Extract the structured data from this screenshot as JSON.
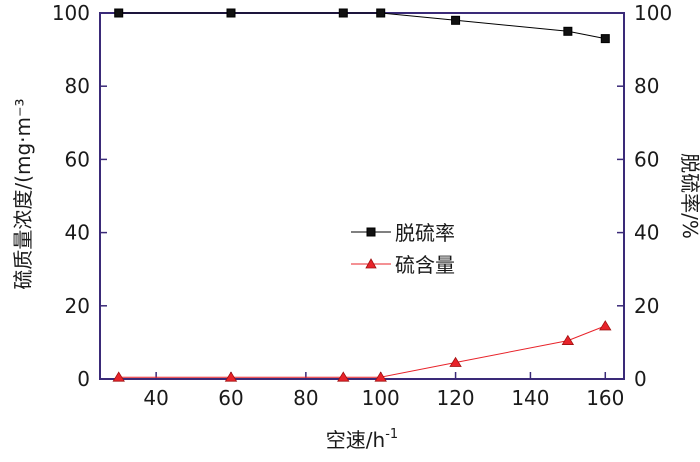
{
  "chart_data": {
    "type": "line",
    "x": [
      30,
      60,
      90,
      100,
      120,
      150,
      160
    ],
    "xlabel_main": "空速/h",
    "xlabel_sup": "-1",
    "xlim": [
      25,
      165
    ],
    "xticks": [
      40,
      60,
      80,
      100,
      120,
      140,
      160
    ],
    "ylabel_left": "硫质量浓度/(mg·m⁻³",
    "ylabel_right": "脱硫率/%",
    "ylim_left": [
      0,
      100
    ],
    "ylim_right": [
      0,
      100
    ],
    "yticks": [
      0,
      20,
      40,
      60,
      80,
      100
    ],
    "grid": false,
    "legend_position": "center",
    "series": [
      {
        "name": "脱硫率",
        "axis": "right",
        "marker": "square",
        "color": "#000000",
        "values": [
          100,
          100,
          100,
          100,
          98,
          95,
          93
        ]
      },
      {
        "name": "硫含量",
        "axis": "left",
        "marker": "triangle",
        "color": "#e8232a",
        "values": [
          0.5,
          0.5,
          0.5,
          0.5,
          4.5,
          10.5,
          14.5
        ]
      }
    ],
    "colors": {
      "axis": "#3a2a78",
      "text": "#1a1a1a"
    }
  }
}
